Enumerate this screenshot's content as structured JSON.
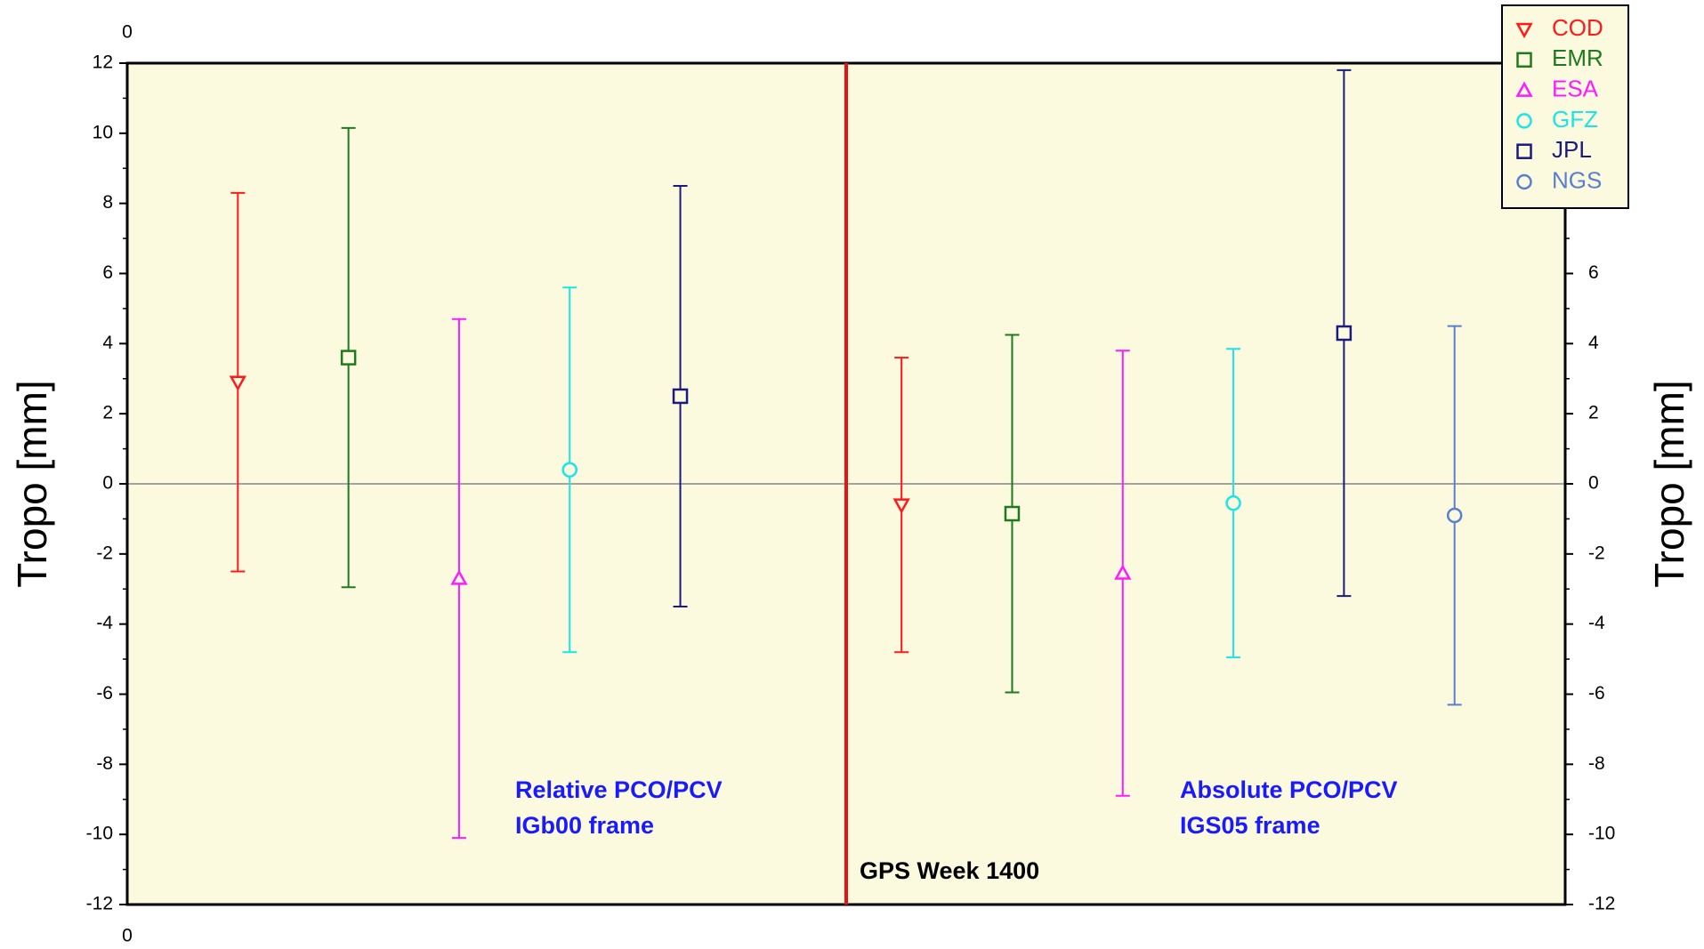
{
  "chart_data": {
    "type": "errorbar",
    "y_label": "Tropo [mm]",
    "y2_label": "Tropo [mm]",
    "xlim": [
      0,
      13
    ],
    "xticks": [
      0
    ],
    "ylim": [
      -12,
      12
    ],
    "yticks": [
      -12,
      -10,
      -8,
      -6,
      -4,
      -2,
      0,
      2,
      4,
      6,
      8,
      10,
      12
    ],
    "y2lim": [
      -12,
      12
    ],
    "y2ticks": [
      -12,
      -10,
      -8,
      -6,
      -4,
      -2,
      0,
      2,
      4,
      6,
      8,
      10,
      12
    ],
    "divider_x": 6.5,
    "zero_line": 0,
    "annotations": [
      "Relative PCO/PCV",
      "IGb00 frame",
      "Absolute PCO/PCV",
      "IGS05 frame",
      "GPS Week 1400"
    ],
    "series": [
      {
        "name": "COD",
        "color": "#ff1a1a",
        "marker": "triangle-down",
        "x": [
          1,
          7
        ],
        "values": [
          2.9,
          -0.6
        ],
        "errors": [
          5.4,
          4.2
        ]
      },
      {
        "name": "EMR",
        "color": "#1e7a1e",
        "marker": "square",
        "x": [
          2,
          8
        ],
        "values": [
          3.6,
          -0.85
        ],
        "errors": [
          6.55,
          5.1
        ]
      },
      {
        "name": "ESA",
        "color": "#ff1aff",
        "marker": "triangle-up",
        "x": [
          3,
          9
        ],
        "values": [
          -2.7,
          -2.55
        ],
        "errors": [
          7.4,
          6.35
        ]
      },
      {
        "name": "GFZ",
        "color": "#1ae6e6",
        "marker": "circle",
        "x": [
          4,
          10
        ],
        "values": [
          0.4,
          -0.55
        ],
        "errors": [
          5.2,
          4.4
        ]
      },
      {
        "name": "JPL",
        "color": "#1a1a80",
        "marker": "square",
        "x": [
          5,
          11
        ],
        "values": [
          2.5,
          4.3
        ],
        "errors": [
          6.0,
          7.5
        ]
      },
      {
        "name": "NGS",
        "color": "#5a7fd0",
        "marker": "circle",
        "x": [
          12
        ],
        "values": [
          -0.9
        ],
        "errors": [
          5.4
        ]
      }
    ]
  }
}
